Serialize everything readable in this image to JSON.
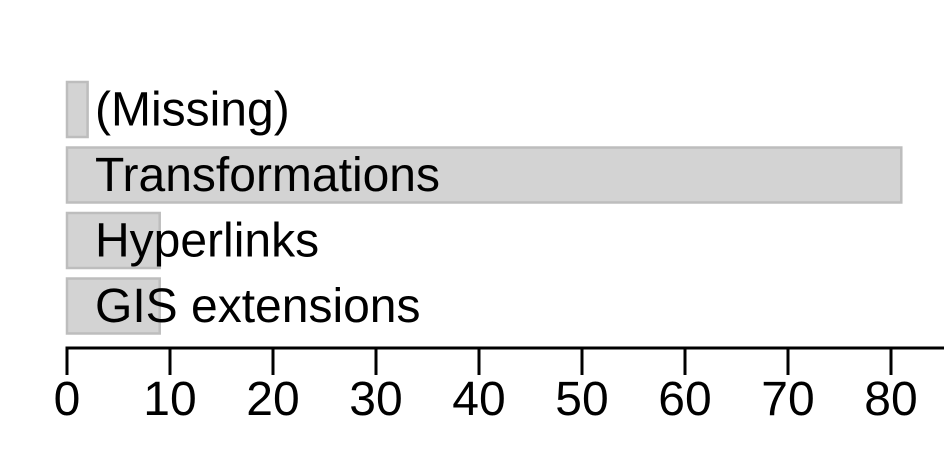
{
  "chart_data": {
    "type": "bar",
    "orientation": "horizontal",
    "categories": [
      "(Missing)",
      "Transformations",
      "Hyperlinks",
      "GIS extensions"
    ],
    "values": [
      2,
      81,
      9,
      9
    ],
    "xlim": [
      0,
      85
    ],
    "xticks": [
      "0",
      "10",
      "20",
      "30",
      "40",
      "50",
      "60",
      "70",
      "80"
    ],
    "xlabel": "",
    "ylabel": "",
    "title": "",
    "grid": false,
    "legend": "none",
    "bar_color": "#d3d3d3",
    "bar_edge_color": "#bdbdbd"
  }
}
